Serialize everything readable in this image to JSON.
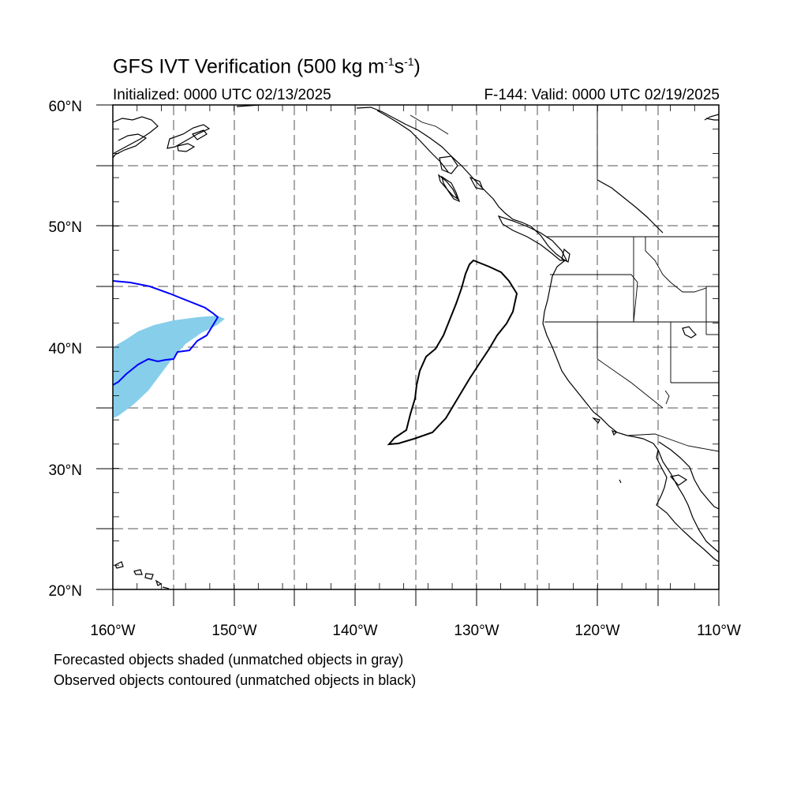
{
  "title": {
    "text": "GFS IVT Verification (500 kg m",
    "sup1": "-1",
    "mid": "s",
    "sup2": "-1",
    "end": ")"
  },
  "initialized": "Initialized: 0000 UTC 02/13/2025",
  "valid": "F-144: Valid: 0000 UTC 02/19/2025",
  "lat_labels": [
    "60°N",
    "50°N",
    "40°N",
    "30°N",
    "20°N"
  ],
  "lon_labels": [
    "160°W",
    "150°W",
    "140°W",
    "130°W",
    "120°W",
    "110°W"
  ],
  "notes": [
    "Forecasted objects shaded (unmatched objects in gray)",
    "Observed objects contoured (unmatched objects in black)"
  ],
  "map": {
    "extent": {
      "lon": [
        -160,
        -110
      ],
      "lat": [
        20,
        60
      ]
    },
    "colors": {
      "forecast_fill": "#87ceeb",
      "matched_observed": "#0000ff",
      "unmatched_observed": "#000000",
      "coastline": "#000000",
      "grid": "#555555"
    }
  }
}
